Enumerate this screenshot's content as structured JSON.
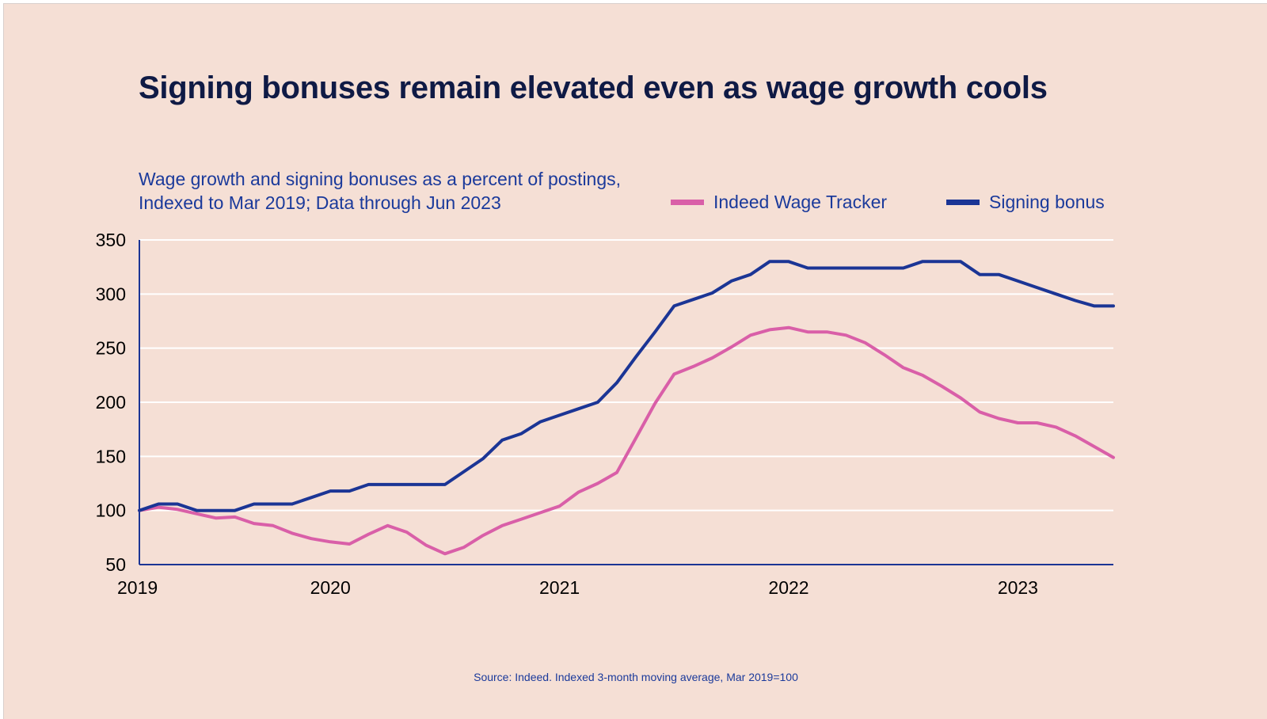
{
  "title": "Signing bonuses remain elevated even as wage growth cools",
  "subtitle": "Wage growth and signing bonuses as a percent of postings, Indexed to Mar 2019; Data through Jun 2023",
  "source": "Source: Indeed. Indexed 3-month moving average, Mar 2019=100",
  "colors": {
    "background": "#f5dfd5",
    "title": "#0f1a45",
    "text": "#1b3a9b",
    "wage": "#d95fa8",
    "bonus": "#1b3595",
    "grid": "#ffffff"
  },
  "chart_data": {
    "type": "line",
    "title": "Signing bonuses remain elevated even as wage growth cools",
    "subtitle": "Wage growth and signing bonuses as a percent of postings, Indexed to Mar 2019; Data through Jun 2023",
    "xlabel": "",
    "ylabel": "",
    "ylim": [
      50,
      350
    ],
    "yticks": [
      350,
      300,
      250,
      200,
      150,
      100,
      50
    ],
    "xlim": [
      "2019-03",
      "2023-06"
    ],
    "xticks": [
      {
        "label": "2019",
        "date": "2019-03"
      },
      {
        "label": "2020",
        "date": "2020-01"
      },
      {
        "label": "2021",
        "date": "2021-01"
      },
      {
        "label": "2022",
        "date": "2022-01"
      },
      {
        "label": "2023",
        "date": "2023-01"
      }
    ],
    "grid": true,
    "legend_position": "top-right",
    "x": [
      "2019-03",
      "2019-04",
      "2019-05",
      "2019-06",
      "2019-07",
      "2019-08",
      "2019-09",
      "2019-10",
      "2019-11",
      "2019-12",
      "2020-01",
      "2020-02",
      "2020-03",
      "2020-04",
      "2020-05",
      "2020-06",
      "2020-07",
      "2020-08",
      "2020-09",
      "2020-10",
      "2020-11",
      "2020-12",
      "2021-01",
      "2021-02",
      "2021-03",
      "2021-04",
      "2021-05",
      "2021-06",
      "2021-07",
      "2021-08",
      "2021-09",
      "2021-10",
      "2021-11",
      "2021-12",
      "2022-01",
      "2022-02",
      "2022-03",
      "2022-04",
      "2022-05",
      "2022-06",
      "2022-07",
      "2022-08",
      "2022-09",
      "2022-10",
      "2022-11",
      "2022-12",
      "2023-01",
      "2023-02",
      "2023-03",
      "2023-04",
      "2023-05",
      "2023-06"
    ],
    "series": [
      {
        "name": "Indeed Wage Tracker",
        "color": "#d95fa8",
        "values": [
          100,
          103,
          101,
          97,
          93,
          94,
          88,
          86,
          79,
          74,
          71,
          69,
          78,
          86,
          80,
          68,
          60,
          66,
          77,
          86,
          92,
          98,
          104,
          117,
          125,
          135,
          167,
          199,
          226,
          233,
          241,
          251,
          262,
          267,
          269,
          265,
          265,
          262,
          255,
          244,
          232,
          225,
          215,
          204,
          191,
          185,
          181,
          181,
          177,
          169,
          159,
          149
        ]
      },
      {
        "name": "Signing bonus",
        "color": "#1b3595",
        "values": [
          100,
          106,
          106,
          100,
          100,
          100,
          106,
          106,
          106,
          112,
          118,
          118,
          124,
          124,
          124,
          124,
          124,
          136,
          148,
          165,
          171,
          182,
          188,
          194,
          200,
          218,
          242,
          265,
          289,
          295,
          301,
          312,
          318,
          330,
          330,
          324,
          324,
          324,
          324,
          324,
          324,
          330,
          330,
          330,
          318,
          318,
          312,
          306,
          300,
          294,
          289,
          289
        ]
      }
    ]
  }
}
